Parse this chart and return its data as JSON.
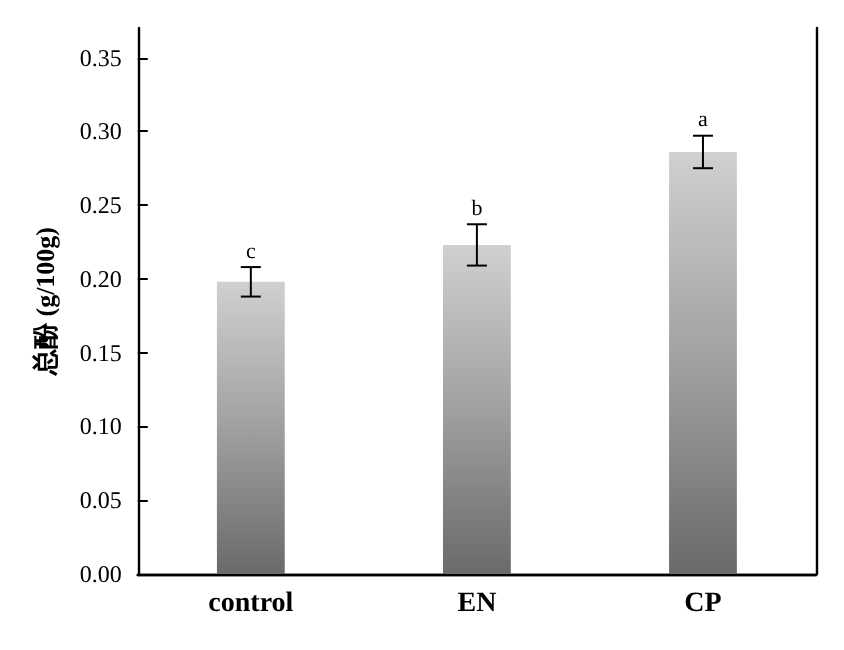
{
  "chart_data": {
    "type": "bar",
    "ylabel": "总酚 (g/100g)",
    "categories": [
      "control",
      "EN",
      "CP"
    ],
    "values": [
      0.198,
      0.223,
      0.286
    ],
    "color": "#a0a0a0",
    "errors": [
      0.01,
      0.014,
      0.011
    ],
    "ylim": [
      0,
      0.37
    ],
    "yticks": [
      {
        "value": 0,
        "label": "0.00"
      },
      0.05,
      {
        "value": 0.1,
        "label": "0.10"
      },
      0.15,
      {
        "value": 0.2,
        "label": "0.20"
      },
      0.25,
      {
        "value": 0.3,
        "label": "0.30"
      },
      0.35
    ],
    "grid": false,
    "annotations": [
      {
        "text": "c",
        "x": "control",
        "y": 0.211
      },
      {
        "text": "b",
        "x": "EN",
        "y": 0.24
      },
      {
        "text": "a",
        "x": "CP",
        "y": 0.3
      }
    ]
  }
}
